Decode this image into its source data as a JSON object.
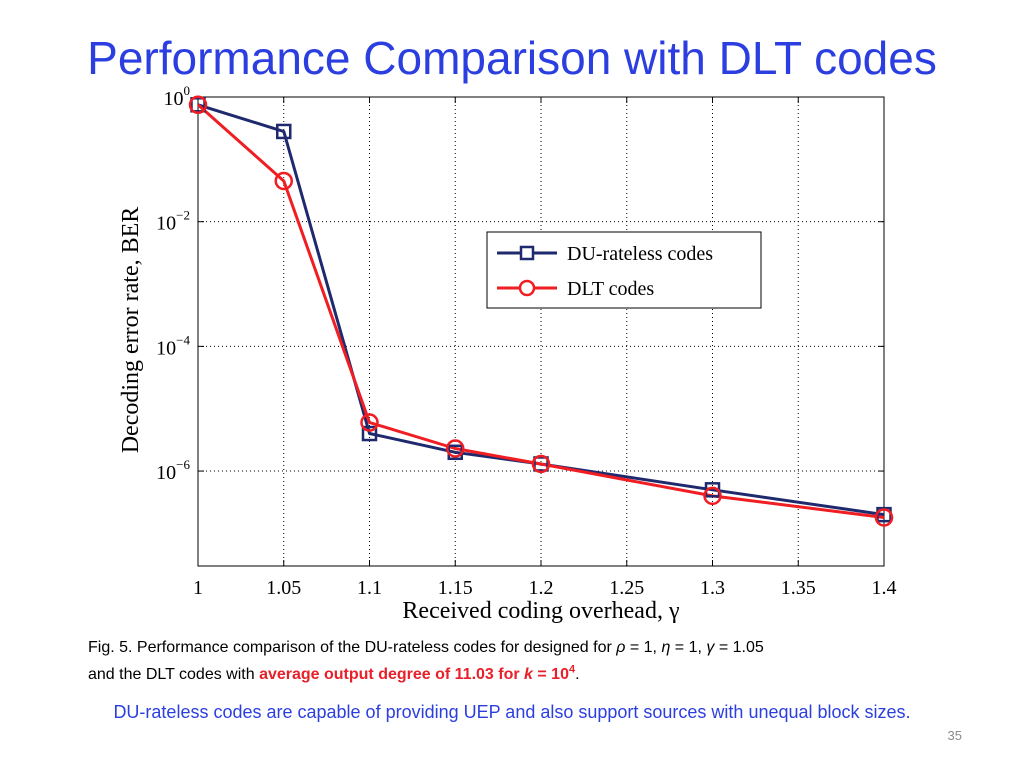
{
  "slide": {
    "title": "Performance Comparison with DLT codes",
    "page_number": "35"
  },
  "caption": {
    "lead": "Fig. 5. Performance comparison of the DU-rateless codes for designed for ",
    "rho_sym": "ρ",
    "rho_val": " = 1, ",
    "eta_sym": "η",
    "eta_val": " = 1, ",
    "gamma_sym": "γ",
    "gamma_val": " = 1.05",
    "line2": "and the DLT codes with ",
    "highlight": "average output degree of 11.03 for ",
    "k_sym": "k",
    "k_val": " = 10",
    "k_exp": "4",
    "end": "."
  },
  "footnote": "DU-rateless codes are capable of providing UEP and also support sources with unequal block sizes.",
  "chart_data": {
    "type": "line",
    "xlabel": "Received coding overhead, γ",
    "ylabel": "Decoding error rate, BER",
    "xlim": [
      1,
      1.4
    ],
    "ylim": [
      3e-08,
      1
    ],
    "yscale": "log",
    "grid": true,
    "grid_style": "dotted",
    "legend_position": "center-right",
    "x_ticks": [
      "1",
      "1.05",
      "1.1",
      "1.15",
      "1.2",
      "1.25",
      "1.3",
      "1.35",
      "1.4"
    ],
    "y_ticks": [
      {
        "base": "10",
        "exp": "0",
        "value": 1
      },
      {
        "base": "10",
        "exp": "−2",
        "value": 0.01
      },
      {
        "base": "10",
        "exp": "−4",
        "value": 0.0001
      },
      {
        "base": "10",
        "exp": "−6",
        "value": 1e-06
      }
    ],
    "series": [
      {
        "name": "DU-rateless codes",
        "color": "#1f2a6e",
        "marker": "square",
        "x": [
          1,
          1.05,
          1.1,
          1.15,
          1.2,
          1.3,
          1.4
        ],
        "y": [
          0.75,
          0.28,
          4e-06,
          2e-06,
          1.3e-06,
          5e-07,
          2e-07
        ]
      },
      {
        "name": "DLT codes",
        "color": "#f01e23",
        "marker": "circle",
        "x": [
          1,
          1.05,
          1.1,
          1.15,
          1.2,
          1.3,
          1.4
        ],
        "y": [
          0.75,
          0.045,
          6e-06,
          2.3e-06,
          1.3e-06,
          4e-07,
          1.8e-07
        ]
      }
    ]
  }
}
